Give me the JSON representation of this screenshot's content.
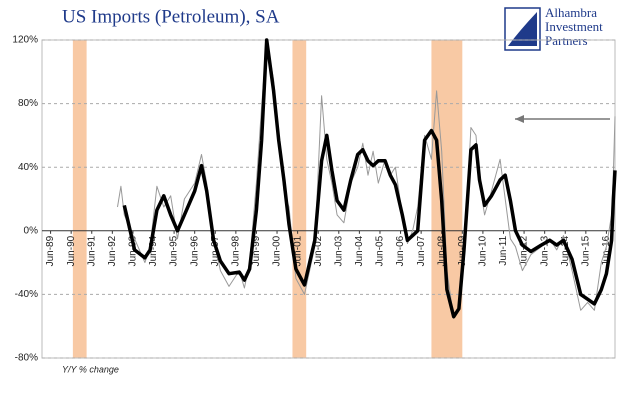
{
  "chart_data": {
    "type": "line",
    "title": "US Imports (Petroleum), SA",
    "logo": [
      "Alhambra",
      "Investment",
      "Partners"
    ],
    "note": "Y/Y % change",
    "xlim": [
      "Jan-89",
      "Nov-16"
    ],
    "xticks": [
      "Jun-89",
      "Jun-90",
      "Jun-91",
      "Jun-92",
      "Jun-93",
      "Jun-94",
      "Jun-95",
      "Jun-96",
      "Jun-97",
      "Jun-98",
      "Jun-99",
      "Jun-00",
      "Jun-01",
      "Jun-02",
      "Jun-03",
      "Jun-04",
      "Jun-05",
      "Jun-06",
      "Jun-07",
      "Jun-08",
      "Jun-09",
      "Jun-10",
      "Jun-11",
      "Jun-12",
      "Jun-13",
      "Jun-14",
      "Jun-15",
      "Jun-16"
    ],
    "ylim": [
      -80,
      120
    ],
    "yticks": [
      {
        "value": -80,
        "label": "-80%"
      },
      {
        "value": -40,
        "label": "-40%"
      },
      {
        "value": 0,
        "label": "0%"
      },
      {
        "value": 40,
        "label": "40%"
      },
      {
        "value": 80,
        "label": "80%"
      },
      {
        "value": 120,
        "label": "120%"
      }
    ],
    "grid": true,
    "shaded_periods": [
      {
        "start": "Jul-90",
        "end": "Mar-91"
      },
      {
        "start": "Mar-01",
        "end": "Nov-01"
      },
      {
        "start": "Dec-07",
        "end": "Jun-09"
      }
    ],
    "shade_color": "#f8c9a4",
    "series": [
      {
        "color": "#999999",
        "width": 1,
        "x": [
          "Sep-92",
          "Nov-92",
          "Jan-93",
          "Jul-93",
          "Jan-94",
          "Apr-94",
          "Aug-94",
          "Dec-94",
          "Apr-95",
          "Aug-95",
          "Dec-95",
          "Jun-96",
          "Oct-96",
          "Jan-97",
          "May-97",
          "Sep-97",
          "Feb-98",
          "Aug-98",
          "Nov-98",
          "Feb-99",
          "Jun-99",
          "Sep-99",
          "Dec-99",
          "Apr-00",
          "Jul-00",
          "Oct-00",
          "Jan-01",
          "May-01",
          "Oct-01",
          "Apr-02",
          "Aug-02",
          "Nov-02",
          "Feb-03",
          "May-03",
          "Sep-03",
          "Jan-04",
          "May-04",
          "Aug-04",
          "Nov-04",
          "Feb-05",
          "May-05",
          "Sep-05",
          "Dec-05",
          "Mar-06",
          "Jul-06",
          "Oct-06",
          "Jan-07",
          "Apr-07",
          "Aug-07",
          "Dec-07",
          "Mar-08",
          "Jun-08",
          "Sep-08",
          "Jan-09",
          "Apr-09",
          "Jul-09",
          "Nov-09",
          "Feb-10",
          "Apr-10",
          "Jul-10",
          "Nov-10",
          "Apr-11",
          "Jul-11",
          "Oct-11",
          "Jan-12",
          "May-12",
          "Oct-12",
          "Apr-13",
          "Sep-13",
          "Jan-14",
          "May-14",
          "Oct-14",
          "Mar-15",
          "Jul-15",
          "Nov-15",
          "Mar-16",
          "Jun-16",
          "Sep-16",
          "Oct-16",
          "Nov-16"
        ],
        "values": [
          15,
          28,
          10,
          -5,
          -20,
          -10,
          28,
          15,
          22,
          -5,
          20,
          30,
          48,
          30,
          -5,
          -25,
          -35,
          -25,
          -36,
          -20,
          30,
          78,
          120,
          95,
          60,
          25,
          15,
          -30,
          -40,
          -10,
          85,
          45,
          30,
          10,
          5,
          30,
          40,
          55,
          35,
          50,
          30,
          45,
          35,
          40,
          10,
          -8,
          0,
          15,
          60,
          45,
          88,
          50,
          -25,
          -55,
          -50,
          -20,
          65,
          60,
          30,
          10,
          25,
          45,
          20,
          -5,
          -10,
          -25,
          -15,
          -10,
          -5,
          -12,
          -3,
          -25,
          -50,
          -45,
          -50,
          -20,
          -10,
          10,
          35,
          72
        ]
      },
      {
        "color": "#000000",
        "width": 3.5,
        "x": [
          "Jan-93",
          "Jul-93",
          "Jan-94",
          "Apr-94",
          "Aug-94",
          "Dec-94",
          "Apr-95",
          "Aug-95",
          "Dec-95",
          "Jun-96",
          "Oct-96",
          "Jan-97",
          "May-97",
          "Sep-97",
          "Feb-98",
          "Aug-98",
          "Nov-98",
          "Feb-99",
          "Jun-99",
          "Sep-99",
          "Dec-99",
          "Apr-00",
          "Jul-00",
          "Oct-00",
          "Jan-01",
          "May-01",
          "Oct-01",
          "Apr-02",
          "Aug-02",
          "Nov-02",
          "Feb-03",
          "May-03",
          "Sep-03",
          "Jan-04",
          "May-04",
          "Aug-04",
          "Nov-04",
          "Feb-05",
          "May-05",
          "Sep-05",
          "Dec-05",
          "Mar-06",
          "Jul-06",
          "Oct-06",
          "Jan-07",
          "Apr-07",
          "Aug-07",
          "Dec-07",
          "Mar-08",
          "Jun-08",
          "Sep-08",
          "Jan-09",
          "Apr-09",
          "Jul-09",
          "Nov-09",
          "Feb-10",
          "Apr-10",
          "Jul-10",
          "Nov-10",
          "Apr-11",
          "Jul-11",
          "Oct-11",
          "Jan-12",
          "May-12",
          "Oct-12",
          "Apr-13",
          "Sep-13",
          "Jan-14",
          "May-14",
          "Oct-14",
          "Mar-15",
          "Jul-15",
          "Nov-15",
          "Mar-16",
          "Jun-16",
          "Sep-16",
          "Oct-16",
          "Nov-16"
        ],
        "values": [
          16,
          -12,
          -17,
          -12,
          13,
          22,
          10,
          0,
          10,
          25,
          41,
          25,
          -6,
          -19,
          -27,
          -26,
          -31,
          -24,
          13,
          57,
          120,
          88,
          57,
          32,
          4,
          -24,
          -34,
          -6,
          44,
          60,
          38,
          19,
          13,
          32,
          48,
          51,
          44,
          41,
          44,
          44,
          35,
          29,
          10,
          -6,
          -3,
          0,
          57,
          63,
          57,
          19,
          -37,
          -54,
          -49,
          -12,
          51,
          54,
          32,
          16,
          22,
          32,
          35,
          19,
          0,
          -9,
          -13,
          -9,
          -6,
          -9,
          -6,
          -18,
          -40,
          -43,
          -46,
          -37,
          -27,
          -6,
          19,
          38
        ]
      }
    ]
  }
}
